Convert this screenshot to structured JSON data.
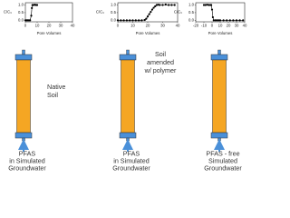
{
  "chart_data": [
    {
      "type": "scatter",
      "ylabel": "C/C₀",
      "xlabel": "Pore Volumes",
      "x": [
        0,
        1,
        2,
        3,
        4,
        5,
        5.5,
        6,
        7,
        8,
        9,
        10
      ],
      "values": [
        0,
        0,
        0,
        0,
        0,
        0.3,
        0.8,
        1,
        1,
        1.02,
        1,
        1
      ],
      "xlim": [
        0,
        40
      ],
      "xticks": [
        0,
        10,
        20,
        30,
        40
      ],
      "ylim": [
        -0.1,
        1.15
      ],
      "yticks": [
        {
          "value": 0,
          "label": "0.0"
        },
        {
          "value": 0.5,
          "label": "0.5"
        },
        {
          "value": 1,
          "label": "1.0"
        }
      ]
    },
    {
      "type": "scatter",
      "ylabel": "C/C₀",
      "xlabel": "Pore Volumes",
      "x": [
        0,
        2,
        4,
        6,
        8,
        10,
        12,
        14,
        16,
        18,
        19,
        20,
        21,
        22,
        23,
        24,
        25,
        26,
        27,
        28,
        30,
        32,
        34,
        36,
        38
      ],
      "values": [
        0,
        0,
        0,
        0,
        0,
        0,
        0,
        0,
        0,
        0.02,
        0.1,
        0.25,
        0.4,
        0.55,
        0.7,
        0.82,
        0.92,
        1,
        1.02,
        1,
        1,
        1.03,
        1,
        1,
        1
      ],
      "xlim": [
        0,
        40
      ],
      "xticks": [
        0,
        10,
        20,
        30,
        40
      ],
      "ylim": [
        -0.1,
        1.15
      ],
      "yticks": [
        {
          "value": 0,
          "label": "0.0"
        },
        {
          "value": 0.5,
          "label": "0.5"
        },
        {
          "value": 1,
          "label": "1.0"
        }
      ]
    },
    {
      "type": "scatter",
      "ylabel": "C/C₀",
      "xlabel": "Pore Volumes",
      "x": [
        -10,
        -8,
        -6,
        -4,
        -2,
        -1,
        0,
        1,
        2,
        4,
        6,
        8,
        10,
        14,
        18,
        22,
        26,
        30,
        34,
        38
      ],
      "values": [
        1,
        1,
        1.02,
        1,
        1,
        1,
        0.7,
        0.2,
        0,
        0,
        0,
        0,
        0,
        0,
        0,
        0,
        0,
        0,
        0,
        0
      ],
      "xlim": [
        -20,
        40
      ],
      "xticks": [
        -20,
        -10,
        0,
        10,
        20,
        30,
        40
      ],
      "ylim": [
        -0.1,
        1.15
      ],
      "yticks": [
        {
          "value": 0,
          "label": "0.0"
        },
        {
          "value": 0.5,
          "label": "0.5"
        },
        {
          "value": 1,
          "label": "1.0"
        }
      ]
    }
  ],
  "columns": [
    {
      "label_lines": [
        "Native",
        "Soil"
      ],
      "feed_lines": [
        "PFAS",
        "in Simulated",
        "Groundwater"
      ]
    },
    {
      "label_lines": [
        "Soil",
        "amended",
        "w/ polymer"
      ],
      "feed_lines": [
        "PFAS",
        "in Simulated",
        "Groundwater"
      ]
    },
    {
      "label_lines": [],
      "feed_lines": [
        "PFAS - free",
        "Simulated",
        "Groundwater"
      ]
    }
  ]
}
